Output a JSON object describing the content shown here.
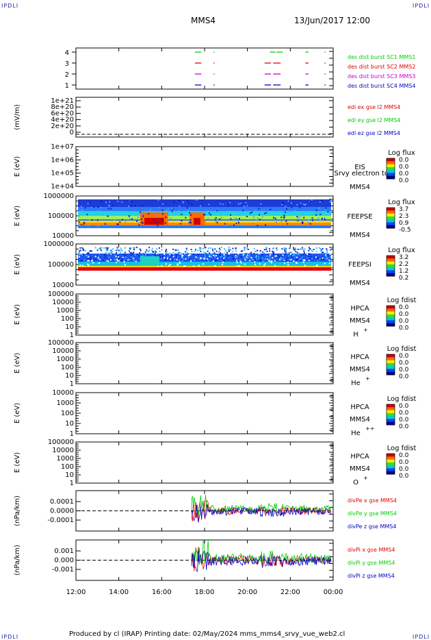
{
  "corners": {
    "tl": "IPDLI",
    "tr": "IPDLI",
    "bl": "IPDLI",
    "br": "IPDLI"
  },
  "header": {
    "spacecraft": "MMS4",
    "datetime": "13/Jun/2017 12:00"
  },
  "footer": {
    "text": "Produced by cl (IRAP)   Printing date: 02/May/2024   mms_mms4_srvy_vue_web2.cl"
  },
  "colors": {
    "red": "#e00000",
    "green": "#00cc00",
    "blue": "#0000cc",
    "magenta": "#cc00cc"
  },
  "chart_data": [
    {
      "type": "line",
      "name": "burst-availability",
      "yticks": [
        "4",
        "3",
        "2",
        "1"
      ],
      "series": [
        {
          "name": "des dist burst SC1 MMS1",
          "color": "#00cc00",
          "segments": [
            [
              17.55,
              17.85
            ],
            [
              18.42,
              18.44
            ],
            [
              21.05,
              21.3
            ],
            [
              21.35,
              21.65
            ],
            [
              22.7,
              22.85
            ],
            [
              23.6,
              23.63
            ]
          ]
        },
        {
          "name": "des dist burst SC2 MMS2",
          "color": "#e00000",
          "segments": [
            [
              17.55,
              17.85
            ],
            [
              18.42,
              18.44
            ],
            [
              20.8,
              21.1
            ],
            [
              21.2,
              21.55
            ],
            [
              22.7,
              22.85
            ],
            [
              23.6,
              23.63
            ]
          ]
        },
        {
          "name": "des dist burst SC3 MMS3",
          "color": "#cc00cc",
          "segments": [
            [
              17.55,
              17.85
            ],
            [
              18.42,
              18.44
            ],
            [
              20.8,
              21.1
            ],
            [
              21.2,
              21.55
            ],
            [
              22.7,
              22.85
            ],
            [
              23.6,
              23.63
            ]
          ]
        },
        {
          "name": "des dist burst SC4 MMS4",
          "color": "#0000cc",
          "segments": [
            [
              17.55,
              17.85
            ],
            [
              18.42,
              18.44
            ],
            [
              20.8,
              21.1
            ],
            [
              21.2,
              21.55
            ],
            [
              22.7,
              22.85
            ],
            [
              23.6,
              23.63
            ]
          ]
        }
      ]
    },
    {
      "type": "line",
      "name": "edi-efield",
      "ylabel": "(mV/m)",
      "yticks": [
        "1e+21",
        "8e+20",
        "6e+20",
        "4e+20",
        "2e+20",
        "0"
      ],
      "series": [
        {
          "name": "edi ex gse l2 MMS4",
          "color": "#e00000"
        },
        {
          "name": "edi ey gse l2 MMS4",
          "color": "#00cc00"
        },
        {
          "name": "edi ez gse l2 MMS4",
          "color": "#0000cc"
        }
      ]
    },
    {
      "type": "heatmap",
      "name": "eis",
      "ylabel": "E (eV)",
      "yticks": [
        "1e+07",
        "1e+06",
        "1e+05",
        "1e+04"
      ],
      "labels": [
        "EIS",
        "Srvy electron tof",
        "MMS4"
      ],
      "colorbar": {
        "title": "Log flux",
        "ticks": [
          "0.0",
          "0.0",
          "0.0",
          "0.0"
        ]
      }
    },
    {
      "type": "heatmap",
      "name": "feepse",
      "ylabel": "E (eV)",
      "yticks": [
        "1000000",
        "100000",
        "10000"
      ],
      "labels": [
        "FEEPSE",
        "MMS4"
      ],
      "colorbar": {
        "title": "Log flux",
        "ticks": [
          "3.7",
          "2.3",
          "0.9",
          "-0.5"
        ]
      }
    },
    {
      "type": "heatmap",
      "name": "feepsi",
      "ylabel": "E (eV)",
      "yticks": [
        "1000000",
        "100000",
        "10000"
      ],
      "labels": [
        "FEEPSI",
        "MMS4"
      ],
      "colorbar": {
        "title": "Log flux",
        "ticks": [
          "3.2",
          "2.2",
          "1.2",
          "0.2"
        ]
      }
    },
    {
      "type": "heatmap",
      "name": "hpca-h",
      "ylabel": "E (eV)",
      "yticks": [
        "100000",
        "10000",
        "1000",
        "100",
        "10",
        "1"
      ],
      "labels": [
        "HPCA",
        "MMS4",
        "H",
        "+"
      ],
      "colorbar": {
        "title": "Log fdist",
        "ticks": [
          "0.0",
          "0.0",
          "0.0",
          "0.0"
        ]
      }
    },
    {
      "type": "heatmap",
      "name": "hpca-he",
      "ylabel": "E (eV)",
      "yticks": [
        "100000",
        "10000",
        "1000",
        "100",
        "10",
        "1"
      ],
      "labels": [
        "HPCA",
        "MMS4",
        "He",
        "+"
      ],
      "colorbar": {
        "title": "Log fdist",
        "ticks": [
          "0.0",
          "0.0",
          "0.0",
          "0.0"
        ]
      }
    },
    {
      "type": "heatmap",
      "name": "hpca-he2",
      "ylabel": "E (eV)",
      "yticks": [
        "10000",
        "1000",
        "100",
        "10",
        "1"
      ],
      "labels": [
        "HPCA",
        "MMS4",
        "He",
        "++"
      ],
      "colorbar": {
        "title": "Log fdist",
        "ticks": [
          "0.0",
          "0.0",
          "0.0",
          "0.0"
        ]
      }
    },
    {
      "type": "heatmap",
      "name": "hpca-o",
      "ylabel": "E (eV)",
      "yticks": [
        "100000",
        "10000",
        "1000",
        "100",
        "10",
        "1"
      ],
      "labels": [
        "HPCA",
        "MMS4",
        "O",
        "+"
      ],
      "colorbar": {
        "title": "Log fdist",
        "ticks": [
          "0.0",
          "0.0",
          "0.0",
          "0.0"
        ]
      }
    },
    {
      "type": "line",
      "name": "divpe",
      "ylabel": "(nPa/km)",
      "yticks": [
        "0.0001",
        "0.0000",
        "-0.0001"
      ],
      "series": [
        {
          "name": "divPe x gse MMS4",
          "color": "#e00000"
        },
        {
          "name": "divPe y gse MMS4",
          "color": "#00cc00"
        },
        {
          "name": "divPe z gse MMS4",
          "color": "#0000cc"
        }
      ]
    },
    {
      "type": "line",
      "name": "divpi",
      "ylabel": "(nPa/km)",
      "yticks": [
        "0.001",
        "0.000",
        "-0.001"
      ],
      "series": [
        {
          "name": "divPi x gse MMS4",
          "color": "#e00000"
        },
        {
          "name": "divPi y gse MMS4",
          "color": "#00cc00"
        },
        {
          "name": "divPi z gse MMS4",
          "color": "#0000cc"
        }
      ]
    }
  ],
  "x_axis": {
    "range": [
      12,
      24
    ],
    "ticks": [
      "12:00",
      "14:00",
      "16:00",
      "18:00",
      "20:00",
      "22:00",
      "00:00"
    ]
  }
}
